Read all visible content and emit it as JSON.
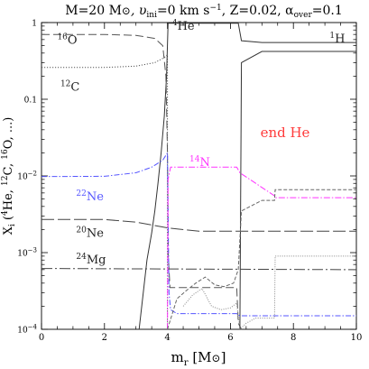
{
  "chart_data": {
    "type": "line",
    "title": "M=20 M⊙, υini=0 km s⁻¹, Z=0.02, αover=0.1",
    "title_parts": {
      "mass": "M=20 M",
      "sun": "⊙",
      "vel": ", υ",
      "vel_sub": "ini",
      "vel_val": "=0  km s",
      "vel_exp": "−1",
      "z": ", Z=0.02, α",
      "alpha_sub": "over",
      "alpha_val": "=0.1"
    },
    "xlabel": "m_r [M⊙]",
    "xlabel_parts": {
      "m": "m",
      "sub": "r",
      "rest": " [M",
      "sun": "⊙",
      "close": "]"
    },
    "ylabel": "X_i (4He, 12C, 16O, ...)",
    "ylabel_parts": {
      "x": "X",
      "sub": "i",
      "open": " (",
      "a": "He, ",
      "a_sup": "4",
      "b": "C, ",
      "b_sup": "12",
      "c": "O, ...)",
      "c_sup": "16"
    },
    "xlim": [
      0,
      10
    ],
    "ylim": [
      0.0001,
      1
    ],
    "yscale": "log",
    "x_ticks": [
      0,
      2,
      4,
      6,
      8,
      10
    ],
    "y_ticks": [
      {
        "value": 1,
        "label": "1"
      },
      {
        "value": 0.1,
        "label": "0.1"
      },
      {
        "value": 0.01,
        "label": "10⁻²",
        "base": "10",
        "exp": "−2"
      },
      {
        "value": 0.001,
        "label": "10⁻³",
        "base": "10",
        "exp": "−3"
      },
      {
        "value": 0.0001,
        "label": "10⁻⁴",
        "base": "10",
        "exp": "−4"
      }
    ],
    "annotation": {
      "text": "end He",
      "color": "#ff3b3b"
    },
    "series": [
      {
        "name": "16O",
        "color": "#555555",
        "dash": "9,4",
        "width": 1,
        "points": [
          [
            0,
            0.7
          ],
          [
            2.0,
            0.7
          ],
          [
            3.0,
            0.68
          ],
          [
            3.6,
            0.62
          ],
          [
            3.85,
            0.5
          ],
          [
            3.95,
            0.2
          ],
          [
            4.0,
            0.02
          ],
          [
            4.03,
            0.0009
          ],
          [
            4.08,
            0.00035
          ],
          [
            6.2,
            0.00035
          ],
          [
            6.25,
            0.00012
          ],
          [
            6.35,
            0.0001
          ]
        ]
      },
      {
        "name": "12C",
        "color": "#555555",
        "dash": "1.2,1.8",
        "width": 1,
        "points": [
          [
            0,
            0.26
          ],
          [
            2.0,
            0.26
          ],
          [
            3.0,
            0.27
          ],
          [
            3.6,
            0.3
          ],
          [
            3.9,
            0.35
          ],
          [
            4.0,
            0.38
          ],
          [
            4.0,
            0.0001
          ]
        ]
      },
      {
        "name": "4He",
        "color": "#333333",
        "dash": "",
        "width": 1,
        "points": [
          [
            3.1,
            0.0001
          ],
          [
            3.35,
            0.0008
          ],
          [
            3.5,
            0.0018
          ],
          [
            3.6,
            0.0035
          ],
          [
            3.7,
            0.008
          ],
          [
            3.8,
            0.02
          ],
          [
            3.9,
            0.06
          ],
          [
            3.97,
            0.2
          ],
          [
            4.02,
            0.98
          ],
          [
            6.25,
            0.98
          ],
          [
            6.35,
            0.58
          ],
          [
            7.0,
            0.55
          ],
          [
            10,
            0.55
          ]
        ]
      },
      {
        "name": "1H",
        "color": "#333333",
        "dash": "",
        "width": 1,
        "points": [
          [
            6.3,
            0.0001
          ],
          [
            6.35,
            0.3
          ],
          [
            7.0,
            0.42
          ],
          [
            10,
            0.42
          ]
        ]
      },
      {
        "name": "22Ne",
        "color": "#5555ff",
        "dash": "6,2,1.5,2",
        "width": 1,
        "points": [
          [
            0,
            0.0098
          ],
          [
            2.0,
            0.0099
          ],
          [
            3.0,
            0.011
          ],
          [
            3.5,
            0.013
          ],
          [
            3.85,
            0.016
          ],
          [
            4.0,
            0.02
          ],
          [
            4.05,
            0.0003
          ],
          [
            4.1,
            0.00018
          ],
          [
            4.3,
            0.00016
          ],
          [
            6.2,
            0.00016
          ],
          [
            6.3,
            0.00015
          ],
          [
            10,
            0.00015
          ]
        ]
      },
      {
        "name": "20Ne",
        "color": "#444444",
        "dash": "14,4",
        "width": 1,
        "points": [
          [
            0,
            0.0027
          ],
          [
            2.0,
            0.0027
          ],
          [
            3.0,
            0.0025
          ],
          [
            4.0,
            0.0021
          ],
          [
            5.0,
            0.0019
          ],
          [
            10,
            0.0019
          ]
        ]
      },
      {
        "name": "24Mg",
        "color": "#444444",
        "dash": "12,3,2,3",
        "width": 1,
        "points": [
          [
            0,
            0.00062
          ],
          [
            10,
            0.0006
          ]
        ]
      },
      {
        "name": "14N",
        "color": "#ff33ff",
        "dash": "7,2,1.5,2",
        "width": 1,
        "points": [
          [
            4.0,
            0.0001
          ],
          [
            4.02,
            0.009
          ],
          [
            4.1,
            0.013
          ],
          [
            6.2,
            0.013
          ],
          [
            6.3,
            0.011
          ],
          [
            7.4,
            0.0055
          ],
          [
            7.42,
            0.0052
          ],
          [
            10,
            0.0052
          ]
        ]
      },
      {
        "name": "",
        "color": "#666666",
        "dash": "4,2",
        "width": 1,
        "points": [
          [
            4.0,
            0.0001
          ],
          [
            4.3,
            0.00025
          ],
          [
            4.6,
            0.00032
          ],
          [
            4.9,
            0.0004
          ],
          [
            5.2,
            0.00048
          ],
          [
            5.5,
            0.00038
          ],
          [
            5.8,
            0.00036
          ],
          [
            6.1,
            0.0004
          ],
          [
            6.25,
            0.0006
          ],
          [
            6.35,
            0.0035
          ],
          [
            7.0,
            0.0048
          ],
          [
            7.4,
            0.0048
          ],
          [
            7.42,
            0.0066
          ],
          [
            10,
            0.0066
          ]
        ]
      },
      {
        "name": "",
        "color": "#888888",
        "dash": "1,1.5",
        "width": 1,
        "points": [
          [
            4.5,
            0.0002
          ],
          [
            4.8,
            0.00028
          ],
          [
            5.1,
            0.00034
          ],
          [
            5.4,
            0.0002
          ],
          [
            5.7,
            0.00018
          ],
          [
            6.0,
            0.00019
          ],
          [
            6.2,
            0.00022
          ],
          [
            6.3,
            0.0001
          ],
          [
            6.5,
            0.00012
          ],
          [
            6.8,
            0.00014
          ],
          [
            7.4,
            0.00014
          ],
          [
            7.42,
            0.0009
          ],
          [
            10,
            0.0009
          ]
        ]
      }
    ],
    "labels": [
      {
        "name": "16O",
        "sup": "16",
        "text": "O",
        "color": "#222222",
        "x": 0.5,
        "y": 0.53
      },
      {
        "name": "12C",
        "sup": "12",
        "text": "C",
        "color": "#222222",
        "x": 0.6,
        "y": 0.13
      },
      {
        "name": "4He",
        "sup": "4",
        "text": "He",
        "color": "#222222",
        "x": 4.15,
        "y": 0.8
      },
      {
        "name": "1H",
        "sup": "1",
        "text": "H",
        "color": "#222222",
        "x": 9.15,
        "y": 0.55
      },
      {
        "name": "14N",
        "sup": "14",
        "text": "N",
        "color": "#ff33ff",
        "x": 4.7,
        "y": 0.0135
      },
      {
        "name": "22Ne",
        "sup": "22",
        "text": "Ne",
        "color": "#5555ff",
        "x": 1.1,
        "y": 0.0048
      },
      {
        "name": "20Ne",
        "sup": "20",
        "text": "Ne",
        "color": "#222222",
        "x": 1.1,
        "y": 0.0016
      },
      {
        "name": "24Mg",
        "sup": "24",
        "text": "Mg",
        "color": "#222222",
        "x": 1.1,
        "y": 0.00072
      }
    ]
  }
}
